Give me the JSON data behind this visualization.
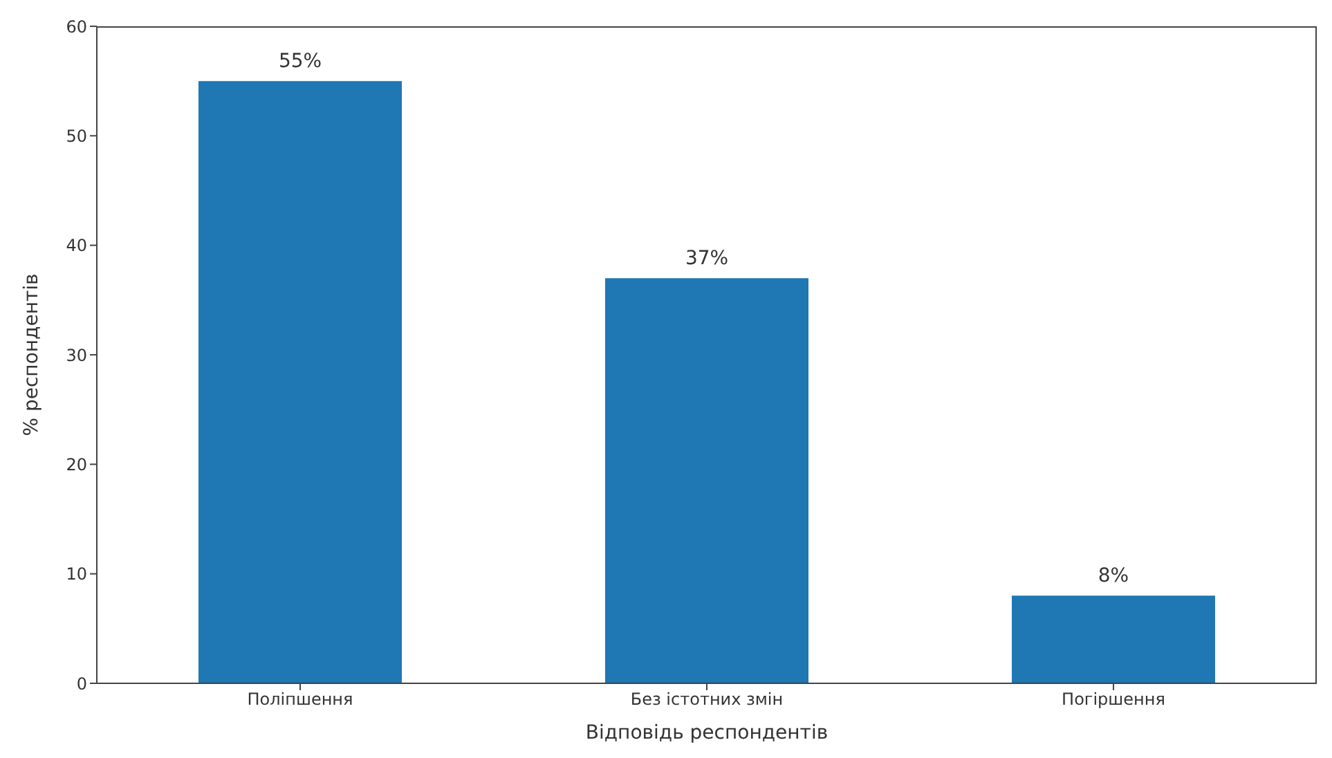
{
  "chart_data": {
    "type": "bar",
    "xlabel": "Відповідь респондентів",
    "ylabel": "% респондентів",
    "categories": [
      "Поліпшення",
      "Без істотних змін",
      "Погіршення"
    ],
    "values": [
      55,
      37,
      8
    ],
    "color": "#1f77b4",
    "value_labels": [
      "55%",
      "37%",
      "8%"
    ],
    "ylim": [
      0,
      60
    ],
    "yticks": [
      0,
      10,
      20,
      30,
      40,
      50,
      60
    ],
    "grid": false,
    "legend": false
  }
}
